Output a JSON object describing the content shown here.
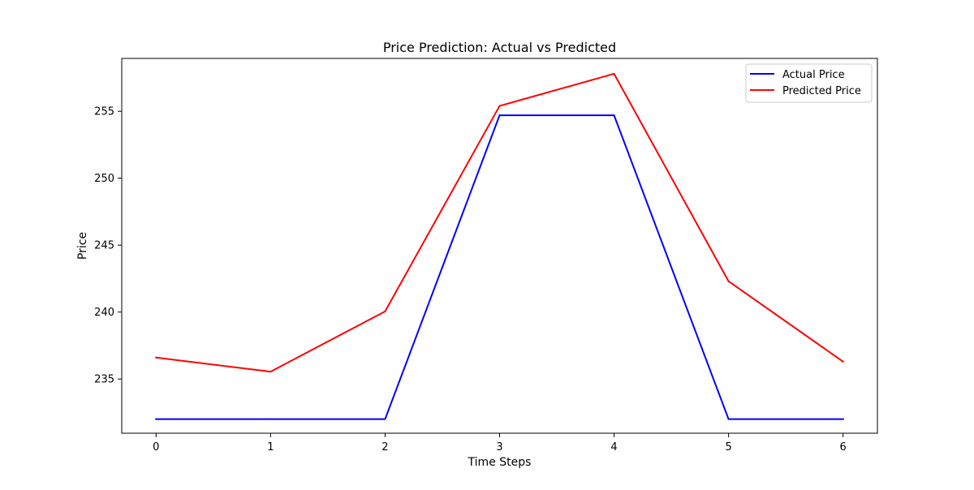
{
  "chart_data": {
    "type": "line",
    "title": "Price Prediction: Actual vs Predicted",
    "xlabel": "Time Steps",
    "ylabel": "Price",
    "x": [
      0,
      1,
      2,
      3,
      4,
      5,
      6
    ],
    "xticks": [
      0,
      1,
      2,
      3,
      4,
      5,
      6
    ],
    "yticks": [
      235,
      240,
      245,
      250,
      255
    ],
    "xlim": [
      -0.3,
      6.3
    ],
    "ylim": [
      230.95,
      258.95
    ],
    "grid": false,
    "legend_position": "top-right",
    "series": [
      {
        "name": "Actual Price",
        "color": "#0000ff",
        "values": [
          232.0,
          232.0,
          232.0,
          254.7,
          254.7,
          232.0,
          232.0
        ]
      },
      {
        "name": "Predicted Price",
        "color": "#ff0000",
        "values": [
          236.6,
          235.55,
          240.05,
          255.4,
          257.8,
          242.3,
          236.3
        ]
      }
    ]
  }
}
